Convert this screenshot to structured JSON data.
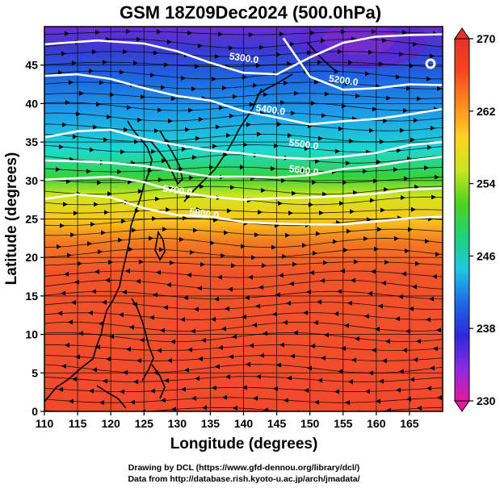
{
  "title": "GSM 18Z09Dec2024 (500.0hPa)",
  "x_axis": {
    "label": "Longitude (degrees)",
    "min": 110,
    "max": 170,
    "ticks": [
      "110",
      "115",
      "120",
      "125",
      "130",
      "135",
      "140",
      "145",
      "150",
      "155",
      "160",
      "165"
    ]
  },
  "y_axis": {
    "label": "Latitude  (degrees)",
    "min": 0,
    "max": 50,
    "ticks": [
      "0",
      "5",
      "10",
      "15",
      "20",
      "25",
      "30",
      "35",
      "40",
      "45"
    ]
  },
  "colorbar": {
    "min": 230,
    "max": 270,
    "labels": [
      "230",
      "238",
      "246",
      "254",
      "262",
      "270"
    ],
    "colors": [
      "#e6199e",
      "#8a2be2",
      "#2a2ad9",
      "#1e6ae8",
      "#1ec8e0",
      "#1ed27a",
      "#4ed21e",
      "#c8e61e",
      "#ffd21e",
      "#ff8c1e",
      "#f5461e",
      "#e63228"
    ]
  },
  "contours": [
    {
      "label": "5300.0",
      "lons": [
        110,
        118,
        125,
        130,
        135,
        140,
        145,
        150,
        155,
        160,
        165,
        170
      ],
      "lats": [
        47.7,
        48.2,
        47.8,
        46.8,
        45.3,
        44.0,
        43.8,
        46.0,
        47.9,
        48.7,
        48.9,
        49.0
      ]
    },
    {
      "label": "5200.0",
      "lons": [
        146,
        150,
        155,
        160,
        165,
        170
      ],
      "lats": [
        48.5,
        43.5,
        41.8,
        42.0,
        42.5,
        42.4
      ]
    },
    {
      "label": "5400.0",
      "lons": [
        110,
        115,
        120,
        125,
        130,
        135,
        140,
        145,
        150,
        155,
        160,
        165,
        170
      ],
      "lats": [
        43.6,
        43.8,
        43.2,
        42.0,
        41.0,
        40.4,
        39.0,
        38.2,
        37.3,
        37.7,
        38.0,
        38.6,
        39.3
      ]
    },
    {
      "label": "5500.0",
      "lons": [
        110,
        115,
        120,
        125,
        130,
        135,
        140,
        145,
        150,
        155,
        160,
        165,
        170
      ],
      "lats": [
        35.6,
        36.4,
        36.6,
        35.4,
        34.6,
        33.9,
        33.5,
        33.0,
        32.8,
        33.1,
        33.6,
        34.6,
        35.0
      ]
    },
    {
      "label": "5600.0",
      "lons": [
        110,
        115,
        120,
        125,
        130,
        135,
        140,
        145,
        150,
        155,
        160,
        165,
        170
      ],
      "lats": [
        32.6,
        32.5,
        32.3,
        31.9,
        31.2,
        30.5,
        30.5,
        30.4,
        30.7,
        31.5,
        31.9,
        32.6,
        33.1
      ]
    },
    {
      "label": "5700.0",
      "lons": [
        110,
        115,
        120,
        125,
        130,
        135,
        140,
        145,
        150,
        155,
        160,
        165,
        170
      ],
      "lats": [
        30.1,
        30.3,
        30.5,
        29.8,
        28.5,
        27.9,
        27.5,
        27.7,
        27.8,
        28.0,
        28.3,
        28.8,
        29.0
      ]
    },
    {
      "label": "5800.0",
      "lons": [
        110,
        115,
        120,
        125,
        130,
        135,
        140,
        145,
        150,
        155,
        160,
        165,
        170
      ],
      "lats": [
        27.6,
        28.2,
        27.8,
        26.4,
        25.5,
        25.3,
        24.6,
        24.4,
        24.3,
        24.3,
        24.7,
        25.1,
        25.3
      ]
    }
  ],
  "credits": [
    "Drawing by DCL (https://www.gfd-dennou.org/library/dcl/)",
    "Data from http://database.rish.kyoto-u.ac.jp/arch/jmadata/"
  ]
}
